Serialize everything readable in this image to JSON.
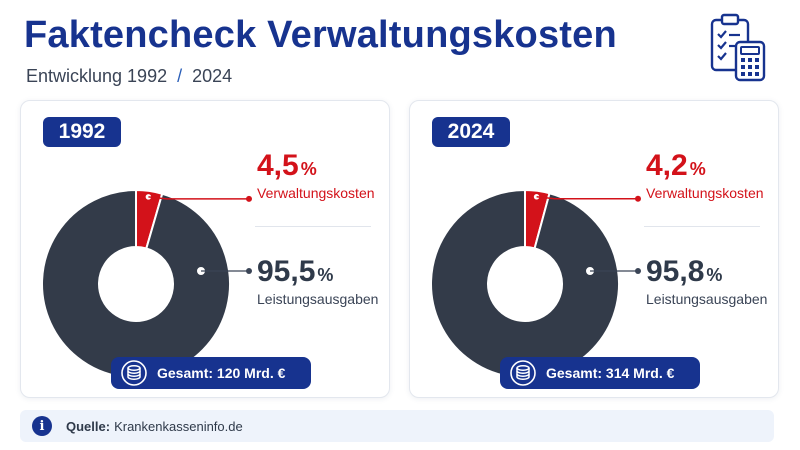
{
  "header": {
    "title": "Faktencheck Verwaltungskosten",
    "subtitle_prefix": "Entwicklung 1992",
    "subtitle_sep": "/",
    "subtitle_suffix": "2024",
    "icon": "clipboard-calculator-icon"
  },
  "colors": {
    "brand": "#17338f",
    "admin": "#d3121a",
    "benefit": "#333b49"
  },
  "chart_data": [
    {
      "type": "pie",
      "donut": true,
      "title": "1992",
      "categories": [
        "Verwaltungskosten",
        "Leistungsausgaben"
      ],
      "values": [
        4.5,
        95.5
      ],
      "value_labels": [
        "4,5",
        "95,5"
      ],
      "unit": "%",
      "total": "Gesamt: 120 Mrd. €"
    },
    {
      "type": "pie",
      "donut": true,
      "title": "2024",
      "categories": [
        "Verwaltungskosten",
        "Leistungsausgaben"
      ],
      "values": [
        4.2,
        95.8
      ],
      "value_labels": [
        "4,2",
        "95,8"
      ],
      "unit": "%",
      "total": "Gesamt: 314 Mrd. €"
    }
  ],
  "source": {
    "label": "Quelle:",
    "value": "Krankenkasseninfo.de",
    "icon": "info-icon"
  }
}
